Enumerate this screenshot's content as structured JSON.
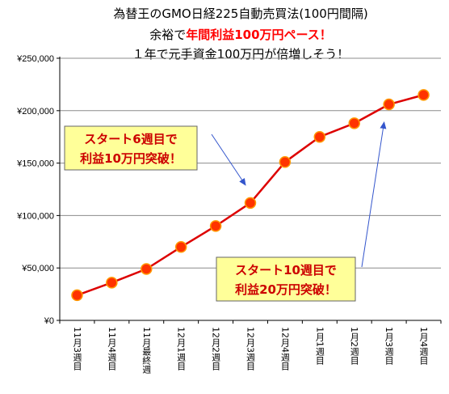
{
  "chart_data": {
    "type": "line",
    "title_lines": [
      [
        {
          "text": "為替王のGMO日経225自動売買法(100円間隔)",
          "emph": false
        }
      ],
      [
        {
          "text": "余裕で",
          "emph": false
        },
        {
          "text": "年間利益100万円ペース！",
          "emph": true
        }
      ],
      [
        {
          "text": "１年で元手資金100万円が倍増しそう！",
          "emph": false
        }
      ]
    ],
    "categories": [
      "11月3週目",
      "11月4週目",
      "11月最終週",
      "12月1週目",
      "12月2週目",
      "12月3週目",
      "12月4週目",
      "1月1週目",
      "1月2週目",
      "1月3週目",
      "1月4週目"
    ],
    "values": [
      24000,
      36000,
      49000,
      70000,
      90000,
      112000,
      151000,
      175000,
      188000,
      206000,
      215000
    ],
    "y_ticks": [
      "¥0",
      "¥50,000",
      "¥100,000",
      "¥150,000",
      "¥200,000",
      "¥250,000"
    ],
    "ylim": [
      0,
      250000
    ],
    "grid": "horizontal",
    "colors": {
      "line": "#dd0000",
      "marker_fill": "#ff3300",
      "marker_edge": "#ff9900",
      "callout_bg": "#ffff99",
      "callout_text": "#cc0000",
      "arrow": "#3355cc",
      "emph": "#ff0000"
    },
    "annotations": [
      {
        "lines": [
          "スタート6週目で",
          "利益10万円突破！"
        ],
        "target_index": 5
      },
      {
        "lines": [
          "スタート10週目で",
          "利益20万円突破！"
        ],
        "target_index": 9
      }
    ]
  }
}
